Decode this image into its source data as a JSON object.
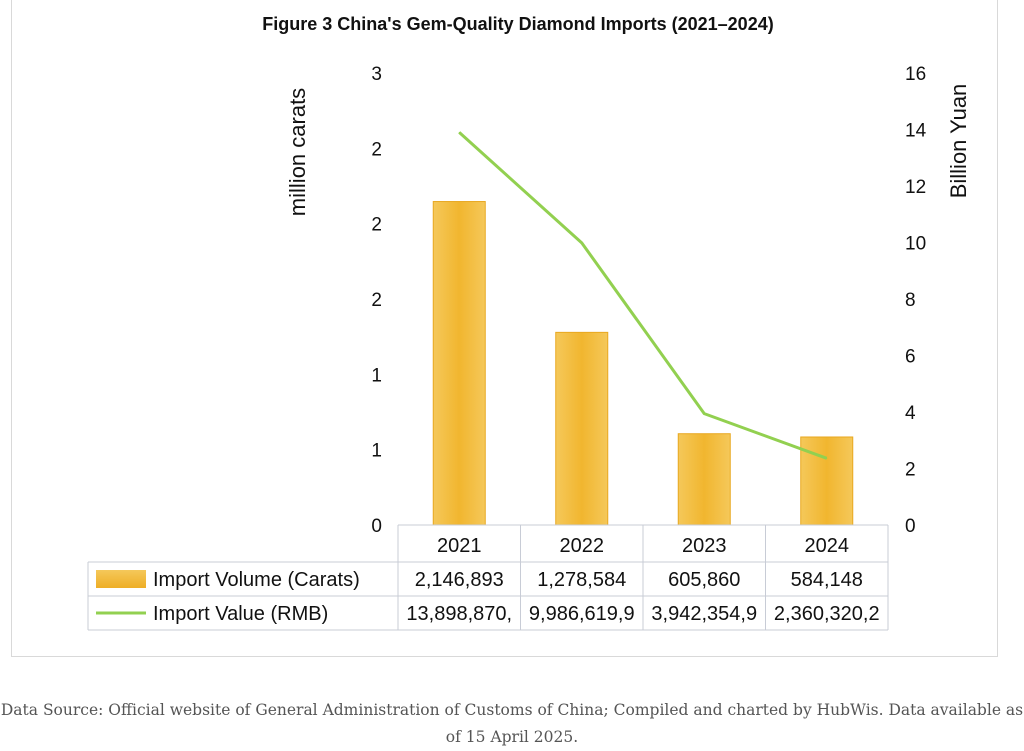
{
  "chart_data": {
    "type": "bar+line",
    "title": "Figure 3 China's Gem-Quality Diamond Imports (2021–2024)",
    "categories": [
      "2021",
      "2022",
      "2023",
      "2024"
    ],
    "y_left": {
      "label": "million carats",
      "range": [
        0,
        3
      ],
      "tick_values": [
        0,
        0.5,
        1,
        1.5,
        2,
        2.5,
        3
      ],
      "tick_labels": [
        "0",
        "1",
        "1",
        "2",
        "2",
        "2",
        "3"
      ]
    },
    "y_right": {
      "label": "Billion Yuan",
      "range": [
        0,
        16
      ],
      "tick_values": [
        0,
        2,
        4,
        6,
        8,
        10,
        12,
        14,
        16
      ],
      "tick_labels": [
        "0",
        "2",
        "4",
        "6",
        "8",
        "10",
        "12",
        "14",
        "16"
      ]
    },
    "series": [
      {
        "name": "Import Volume (Carats)",
        "type": "bar",
        "axis": "left",
        "values": [
          2.146893,
          1.278584,
          0.60586,
          0.584148
        ],
        "table_labels": [
          "2,146,893",
          "1,278,584",
          "605,860",
          "584,148"
        ],
        "color": "#f2bc3b"
      },
      {
        "name": "Import Value (RMB)",
        "type": "line",
        "axis": "right",
        "values": [
          13.89887,
          9.9866199,
          3.9423549,
          2.3603202
        ],
        "table_labels": [
          "13,898,870,",
          "9,986,619,9",
          "3,942,354,9",
          "2,360,320,2"
        ],
        "color": "#92d050"
      }
    ],
    "grid": false,
    "legend": "data-table"
  },
  "source_note_lines": [
    "Data Source: Official website of General Administration of Customs of China; Compiled and charted by HubWis. Data available as",
    "of 15 April 2025."
  ]
}
